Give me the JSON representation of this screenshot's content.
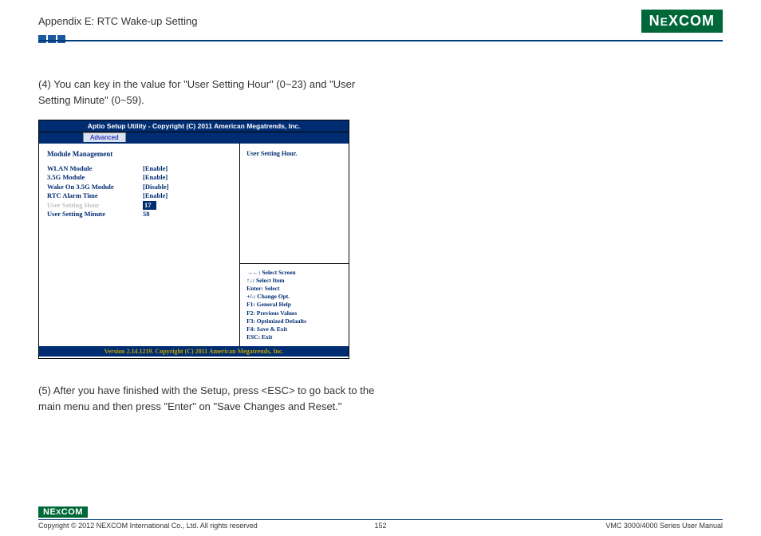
{
  "header": {
    "appendix_title": "Appendix E: RTC Wake-up Setting",
    "logo_text": "NEXCOM"
  },
  "colors": {
    "brand_green": "#006838",
    "header_rule": "#003a7a",
    "square_blue": "#1a5aa0",
    "bios_navy": "#002d72",
    "bios_blue_text": "#002d72",
    "bios_tab_bg": "#d9e2f0",
    "bios_selected_grey": "#c0c0c0",
    "bios_footer_gold": "#c0a000"
  },
  "para4": "(4) You can key in the value for \"User Setting Hour\" (0~23) and \"User Setting Minute\" (0~59).",
  "para5": "(5) After you have finished with the Setup, press <ESC> to go back to the main menu and then press \"Enter\" on \"Save Changes and Reset.\"",
  "bios": {
    "top_line": "Aptio Setup Utility - Copyright (C) 2011 American Megatrends, Inc.",
    "tab": "Advanced",
    "section_title": "Module Management",
    "rows": [
      {
        "label": "WLAN Module",
        "value": "[Enable]",
        "selected": false
      },
      {
        "label": "3.5G Module",
        "value": "[Enable]",
        "selected": false
      },
      {
        "label": "Wake On 3.5G Module",
        "value": "[Disable]",
        "selected": false
      },
      {
        "label": "RTC Alarm Time",
        "value": "[Enable]",
        "selected": false
      },
      {
        "label": "User Setting Hour",
        "value": "17",
        "selected": true,
        "highlight": true
      },
      {
        "label": "User Setting Minute",
        "value": "58",
        "selected": false
      }
    ],
    "help_text": "User Setting Hour.",
    "nav": [
      "→←: Select Screen",
      "↑↓: Select Item",
      "Enter: Select",
      "+/-: Change Opt.",
      "F1: General Help",
      "F2: Previous Values",
      "F3: Optimized Defaults",
      "F4: Save & Exit",
      "ESC: Exit"
    ],
    "bottom_line": "Version 2.14.1219. Copyright (C) 2011 American Megatrends, Inc."
  },
  "footer": {
    "logo_text": "NEXCOM",
    "copyright": "Copyright © 2012 NEXCOM International Co., Ltd. All rights reserved",
    "page_number": "152",
    "manual_name": "VMC 3000/4000 Series User Manual"
  }
}
